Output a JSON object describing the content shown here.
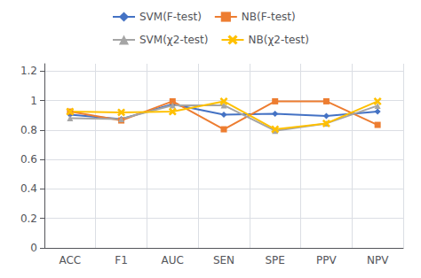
{
  "chart_data": {
    "type": "line",
    "categories": [
      "ACC",
      "F1",
      "AUC",
      "SEN",
      "SPE",
      "PPV",
      "NPV"
    ],
    "series": [
      {
        "name": "SVM(F-test)",
        "color": "#4472c4",
        "marker": "diamond",
        "values": [
          0.905,
          0.875,
          0.975,
          0.905,
          0.91,
          0.895,
          0.925
        ]
      },
      {
        "name": "NB(F-test)",
        "color": "#ed7d31",
        "marker": "square",
        "values": [
          0.925,
          0.865,
          0.995,
          0.805,
          0.995,
          0.995,
          0.835
        ]
      },
      {
        "name": "SVM(χ2-test)",
        "color": "#a5a5a5",
        "marker": "triangle",
        "values": [
          0.88,
          0.875,
          0.968,
          0.968,
          0.795,
          0.845,
          0.965
        ]
      },
      {
        "name": "NB(χ2-test)",
        "color": "#ffc000",
        "marker": "x",
        "values": [
          0.925,
          0.92,
          0.925,
          0.995,
          0.805,
          0.845,
          0.995
        ]
      }
    ],
    "ylim": [
      0,
      1.25
    ],
    "yticks": [
      0,
      0.2,
      0.4,
      0.6,
      0.8,
      1,
      1.2
    ],
    "grid": true,
    "legend": "top"
  }
}
